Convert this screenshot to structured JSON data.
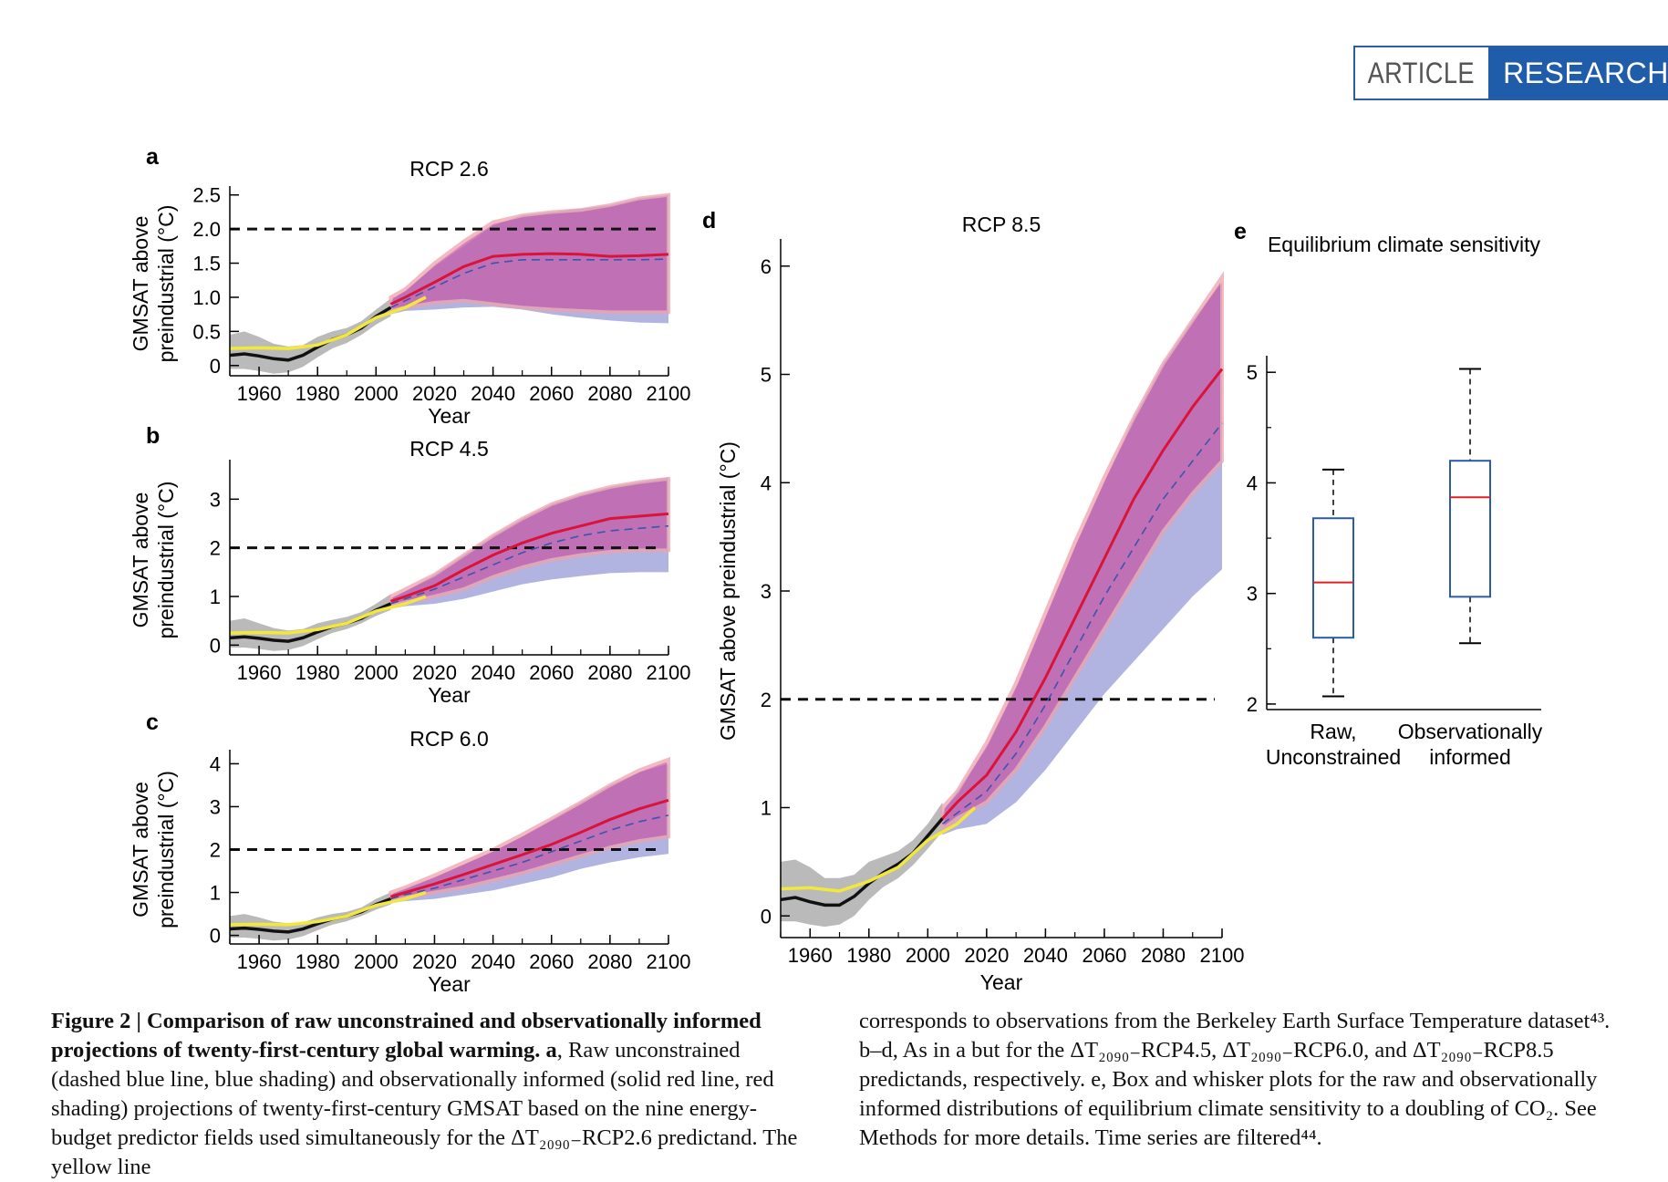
{
  "header": {
    "left_label": "ARTICLE",
    "right_label": "RESEARCH",
    "accent": "#1f5ca9"
  },
  "chart_data": [
    {
      "panel": "a",
      "type": "line",
      "title": "RCP 2.6",
      "xlabel": "Year",
      "ylabel": "GMSAT above preindustrial (°C)",
      "xlim": [
        1950,
        2100
      ],
      "ylim": [
        -0.15,
        2.55
      ],
      "xticks": [
        1960,
        1980,
        2000,
        2020,
        2040,
        2060,
        2080,
        2100
      ],
      "yticks": [
        0,
        0.5,
        1.0,
        1.5,
        2.0,
        2.5
      ],
      "ytick_labels": [
        "0",
        "0.5",
        "1.0",
        "1.5",
        "2.0",
        "2.5"
      ],
      "threshold": 2.0,
      "series": [
        {
          "role": "observed",
          "x": [
            1950,
            1955,
            1960,
            1965,
            1970,
            1975,
            1980,
            1985,
            1990,
            1995,
            2000,
            2005
          ],
          "y": [
            0.15,
            0.17,
            0.14,
            0.1,
            0.08,
            0.15,
            0.27,
            0.38,
            0.45,
            0.55,
            0.72,
            0.85
          ],
          "band_lo": [
            -0.05,
            -0.05,
            -0.08,
            -0.12,
            -0.1,
            -0.02,
            0.12,
            0.25,
            0.33,
            0.45,
            0.6,
            0.72
          ],
          "band_hi": [
            0.45,
            0.5,
            0.42,
            0.32,
            0.28,
            0.3,
            0.42,
            0.5,
            0.55,
            0.65,
            0.82,
            0.98
          ]
        },
        {
          "role": "yellow",
          "x": [
            1950,
            1960,
            1970,
            1980,
            1990,
            2000,
            2010,
            2017
          ],
          "y": [
            0.25,
            0.26,
            0.25,
            0.3,
            0.45,
            0.7,
            0.85,
            1.0
          ]
        },
        {
          "role": "unconstrained",
          "x": [
            2005,
            2010,
            2020,
            2030,
            2040,
            2050,
            2060,
            2070,
            2080,
            2090,
            2100
          ],
          "y": [
            0.85,
            0.95,
            1.15,
            1.35,
            1.5,
            1.55,
            1.55,
            1.55,
            1.55,
            1.55,
            1.56
          ],
          "band_lo": [
            0.75,
            0.8,
            0.82,
            0.85,
            0.86,
            0.82,
            0.75,
            0.7,
            0.66,
            0.63,
            0.62
          ],
          "band_hi": [
            0.95,
            1.1,
            1.45,
            1.75,
            2.05,
            2.2,
            2.25,
            2.3,
            2.35,
            2.45,
            2.5
          ]
        },
        {
          "role": "informed",
          "x": [
            2005,
            2010,
            2020,
            2030,
            2040,
            2050,
            2060,
            2070,
            2080,
            2090,
            2100
          ],
          "y": [
            0.9,
            1.0,
            1.22,
            1.45,
            1.6,
            1.63,
            1.64,
            1.63,
            1.6,
            1.61,
            1.63
          ],
          "band_lo": [
            0.8,
            0.85,
            0.92,
            0.95,
            0.9,
            0.85,
            0.82,
            0.8,
            0.78,
            0.78,
            0.78
          ],
          "band_hi": [
            1.0,
            1.12,
            1.5,
            1.82,
            2.1,
            2.2,
            2.25,
            2.28,
            2.35,
            2.45,
            2.5
          ]
        }
      ]
    },
    {
      "panel": "b",
      "type": "line",
      "title": "RCP 4.5",
      "xlabel": "Year",
      "ylabel": "GMSAT above preindustrial (°C)",
      "xlim": [
        1950,
        2100
      ],
      "ylim": [
        -0.2,
        3.7
      ],
      "xticks": [
        1960,
        1980,
        2000,
        2020,
        2040,
        2060,
        2080,
        2100
      ],
      "yticks": [
        0,
        1,
        2,
        3
      ],
      "ytick_labels": [
        "0",
        "1",
        "2",
        "3"
      ],
      "threshold": 2.0,
      "series": [
        {
          "role": "observed",
          "x": [
            1950,
            1955,
            1960,
            1965,
            1970,
            1975,
            1980,
            1985,
            1990,
            1995,
            2000,
            2005
          ],
          "y": [
            0.15,
            0.17,
            0.14,
            0.1,
            0.08,
            0.15,
            0.27,
            0.38,
            0.45,
            0.55,
            0.72,
            0.85
          ],
          "band_lo": [
            -0.05,
            -0.05,
            -0.08,
            -0.12,
            -0.1,
            -0.02,
            0.12,
            0.25,
            0.33,
            0.45,
            0.6,
            0.72
          ],
          "band_hi": [
            0.5,
            0.55,
            0.45,
            0.35,
            0.3,
            0.33,
            0.45,
            0.52,
            0.58,
            0.68,
            0.85,
            1.05
          ]
        },
        {
          "role": "yellow",
          "x": [
            1950,
            1960,
            1970,
            1980,
            1990,
            2000,
            2010,
            2017
          ],
          "y": [
            0.25,
            0.26,
            0.25,
            0.32,
            0.45,
            0.7,
            0.85,
            1.0
          ]
        },
        {
          "role": "unconstrained",
          "x": [
            2005,
            2010,
            2020,
            2030,
            2040,
            2050,
            2060,
            2070,
            2080,
            2090,
            2100
          ],
          "y": [
            0.85,
            0.95,
            1.15,
            1.4,
            1.65,
            1.9,
            2.1,
            2.25,
            2.35,
            2.4,
            2.45
          ],
          "band_lo": [
            0.75,
            0.8,
            0.85,
            0.95,
            1.1,
            1.25,
            1.35,
            1.42,
            1.48,
            1.5,
            1.5
          ],
          "band_hi": [
            0.95,
            1.1,
            1.45,
            1.85,
            2.25,
            2.6,
            2.9,
            3.1,
            3.25,
            3.35,
            3.45
          ]
        },
        {
          "role": "informed",
          "x": [
            2005,
            2010,
            2020,
            2030,
            2040,
            2050,
            2060,
            2070,
            2080,
            2090,
            2100
          ],
          "y": [
            0.9,
            1.0,
            1.22,
            1.55,
            1.85,
            2.1,
            2.3,
            2.45,
            2.6,
            2.65,
            2.7
          ],
          "band_lo": [
            0.8,
            0.88,
            1.0,
            1.15,
            1.4,
            1.6,
            1.75,
            1.85,
            1.92,
            1.95,
            1.95
          ],
          "band_hi": [
            1.0,
            1.15,
            1.45,
            1.85,
            2.25,
            2.6,
            2.9,
            3.1,
            3.25,
            3.35,
            3.42
          ]
        }
      ]
    },
    {
      "panel": "c",
      "type": "line",
      "title": "RCP 6.0",
      "xlabel": "Year",
      "ylabel": "GMSAT above preindustrial (°C)",
      "xlim": [
        1950,
        2100
      ],
      "ylim": [
        -0.2,
        4.2
      ],
      "xticks": [
        1960,
        1980,
        2000,
        2020,
        2040,
        2060,
        2080,
        2100
      ],
      "yticks": [
        0,
        1,
        2,
        3,
        4
      ],
      "ytick_labels": [
        "0",
        "1",
        "2",
        "3",
        "4"
      ],
      "threshold": 2.0,
      "series": [
        {
          "role": "observed",
          "x": [
            1950,
            1955,
            1960,
            1965,
            1970,
            1975,
            1980,
            1985,
            1990,
            1995,
            2000,
            2005
          ],
          "y": [
            0.15,
            0.17,
            0.14,
            0.1,
            0.08,
            0.15,
            0.27,
            0.38,
            0.45,
            0.55,
            0.72,
            0.85
          ],
          "band_lo": [
            -0.05,
            -0.05,
            -0.08,
            -0.12,
            -0.1,
            -0.02,
            0.12,
            0.25,
            0.33,
            0.45,
            0.6,
            0.72
          ],
          "band_hi": [
            0.45,
            0.5,
            0.42,
            0.32,
            0.28,
            0.3,
            0.42,
            0.5,
            0.55,
            0.65,
            0.85,
            1.0
          ]
        },
        {
          "role": "yellow",
          "x": [
            1950,
            1960,
            1970,
            1980,
            1990,
            2000,
            2010,
            2017
          ],
          "y": [
            0.25,
            0.26,
            0.25,
            0.32,
            0.45,
            0.7,
            0.85,
            1.0
          ]
        },
        {
          "role": "unconstrained",
          "x": [
            2005,
            2010,
            2020,
            2030,
            2040,
            2050,
            2060,
            2070,
            2080,
            2090,
            2100
          ],
          "y": [
            0.85,
            0.95,
            1.1,
            1.3,
            1.5,
            1.7,
            1.95,
            2.2,
            2.45,
            2.65,
            2.8
          ],
          "band_lo": [
            0.75,
            0.8,
            0.85,
            0.95,
            1.05,
            1.2,
            1.35,
            1.55,
            1.7,
            1.82,
            1.9
          ],
          "band_hi": [
            0.95,
            1.1,
            1.35,
            1.65,
            1.95,
            2.3,
            2.7,
            3.1,
            3.5,
            3.8,
            4.0
          ]
        },
        {
          "role": "informed",
          "x": [
            2005,
            2010,
            2020,
            2030,
            2040,
            2050,
            2060,
            2070,
            2080,
            2090,
            2100
          ],
          "y": [
            0.9,
            1.0,
            1.2,
            1.42,
            1.65,
            1.88,
            2.12,
            2.4,
            2.7,
            2.95,
            3.15
          ],
          "band_lo": [
            0.8,
            0.88,
            1.0,
            1.12,
            1.28,
            1.45,
            1.65,
            1.85,
            2.05,
            2.2,
            2.3
          ],
          "band_hi": [
            1.0,
            1.12,
            1.4,
            1.7,
            2.0,
            2.35,
            2.72,
            3.1,
            3.5,
            3.85,
            4.1
          ]
        }
      ]
    },
    {
      "panel": "d",
      "type": "line",
      "title": "RCP 8.5",
      "xlabel": "Year",
      "ylabel": "GMSAT above preindustrial (°C)",
      "xlim": [
        1950,
        2100
      ],
      "ylim": [
        -0.2,
        6.2
      ],
      "xticks": [
        1960,
        1980,
        2000,
        2020,
        2040,
        2060,
        2080,
        2100
      ],
      "yticks": [
        0,
        1,
        2,
        3,
        4,
        5,
        6
      ],
      "ytick_labels": [
        "0",
        "1",
        "2",
        "3",
        "4",
        "5",
        "6"
      ],
      "threshold": 2.0,
      "series": [
        {
          "role": "observed",
          "x": [
            1950,
            1955,
            1960,
            1965,
            1970,
            1975,
            1980,
            1985,
            1990,
            1995,
            2000,
            2005
          ],
          "y": [
            0.15,
            0.17,
            0.13,
            0.1,
            0.1,
            0.18,
            0.3,
            0.4,
            0.48,
            0.58,
            0.74,
            0.9
          ],
          "band_lo": [
            -0.05,
            -0.05,
            -0.08,
            -0.1,
            -0.08,
            0.0,
            0.15,
            0.27,
            0.35,
            0.47,
            0.62,
            0.78
          ],
          "band_hi": [
            0.5,
            0.52,
            0.45,
            0.35,
            0.35,
            0.38,
            0.5,
            0.55,
            0.6,
            0.7,
            0.85,
            1.05
          ]
        },
        {
          "role": "yellow",
          "x": [
            1950,
            1960,
            1970,
            1980,
            1990,
            2000,
            2010,
            2016
          ],
          "y": [
            0.25,
            0.26,
            0.23,
            0.32,
            0.45,
            0.7,
            0.85,
            1.0
          ]
        },
        {
          "role": "unconstrained",
          "x": [
            2005,
            2010,
            2020,
            2030,
            2040,
            2050,
            2060,
            2070,
            2080,
            2090,
            2100
          ],
          "y": [
            0.85,
            0.95,
            1.15,
            1.5,
            1.95,
            2.45,
            2.95,
            3.4,
            3.85,
            4.2,
            4.55
          ],
          "band_lo": [
            0.75,
            0.8,
            0.85,
            1.05,
            1.35,
            1.7,
            2.05,
            2.35,
            2.65,
            2.95,
            3.2
          ],
          "band_hi": [
            0.95,
            1.15,
            1.55,
            2.1,
            2.75,
            3.4,
            4.0,
            4.6,
            5.1,
            5.5,
            5.85
          ]
        },
        {
          "role": "informed",
          "x": [
            2005,
            2010,
            2020,
            2030,
            2040,
            2050,
            2060,
            2070,
            2080,
            2090,
            2100
          ],
          "y": [
            0.9,
            1.05,
            1.3,
            1.7,
            2.2,
            2.75,
            3.3,
            3.85,
            4.3,
            4.7,
            5.05
          ],
          "band_lo": [
            0.8,
            0.9,
            1.05,
            1.35,
            1.75,
            2.2,
            2.65,
            3.1,
            3.55,
            3.9,
            4.2
          ],
          "band_hi": [
            1.0,
            1.15,
            1.6,
            2.15,
            2.8,
            3.45,
            4.05,
            4.6,
            5.1,
            5.5,
            5.9
          ]
        }
      ]
    },
    {
      "panel": "e",
      "type": "box",
      "title": "Equilibrium climate sensitivity",
      "xlabel": "",
      "ylabel": "",
      "categories": [
        [
          "Raw,",
          "Unconstrained"
        ],
        [
          "Observationally",
          "informed"
        ]
      ],
      "ylim": [
        1.95,
        5.15
      ],
      "yticks": [
        2,
        3,
        4,
        5
      ],
      "ytick_labels": [
        "2",
        "3",
        "4",
        "5"
      ],
      "boxes": [
        {
          "whisker_lo": 2.07,
          "q1": 2.6,
          "median": 3.1,
          "q3": 3.68,
          "whisker_hi": 4.12
        },
        {
          "whisker_lo": 2.55,
          "q1": 2.97,
          "median": 3.87,
          "q3": 4.2,
          "whisker_hi": 5.03
        }
      ]
    }
  ],
  "panel_labels": {
    "a": "a",
    "b": "b",
    "c": "c",
    "d": "d",
    "e": "e"
  },
  "caption_left": {
    "bold": "Figure 2 | Comparison of raw unconstrained and observationally informed projections of twenty-first-century global warming. a",
    "rest": ", Raw unconstrained (dashed blue line, blue shading) and observationally informed (solid red line, red shading) projections of twenty-first-century GMSAT based on the nine energy-budget predictor fields used simultaneously for the ΔT₂₀₉₀₋RCP2.6 predictand. The yellow line"
  },
  "caption_right": "corresponds to observations from the Berkeley Earth Surface Temperature dataset⁴³. b–d, As in a but for the ΔT₂₀₉₀₋RCP4.5, ΔT₂₀₉₀₋RCP6.0, and ΔT₂₀₉₀₋RCP8.5 predictands, respectively. e, Box and whisker plots for the raw and observationally informed distributions of equilibrium climate sensitivity to a doubling of CO₂. See Methods for more details. Time series are filtered⁴⁴.",
  "colors": {
    "observed_line": "#111111",
    "observed_band": "#b3b3b3",
    "yellow_line": "#f2e83c",
    "unconstrained_line": "#3a55b0",
    "unconstrained_band": "#a3a7da",
    "informed_line": "#d8143a",
    "informed_band": "#c55aa6",
    "informed_band_edge": "#eea2ad",
    "box_edge": "#2a5caa",
    "box_median": "#e02020"
  }
}
